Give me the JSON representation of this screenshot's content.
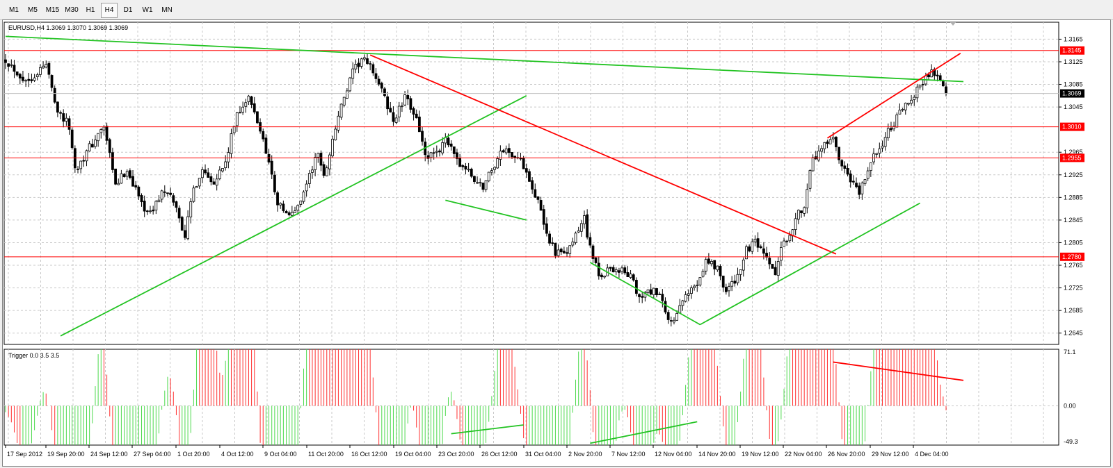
{
  "toolbar": {
    "timeframes": [
      {
        "label": "M1",
        "active": false
      },
      {
        "label": "M5",
        "active": false
      },
      {
        "label": "M15",
        "active": false
      },
      {
        "label": "M30",
        "active": false
      },
      {
        "label": "H1",
        "active": false
      },
      {
        "label": "H4",
        "active": true
      },
      {
        "label": "D1",
        "active": false
      },
      {
        "label": "W1",
        "active": false
      },
      {
        "label": "MN",
        "active": false
      }
    ]
  },
  "price_panel": {
    "info": "EURUSD,H4  1.3069 1.3070 1.3069 1.3069",
    "ticks": [
      "1.3165",
      "1.3125",
      "1.3085",
      "1.3045",
      "1.2965",
      "1.2925",
      "1.2885",
      "1.2845",
      "1.2805",
      "1.2765",
      "1.2725",
      "1.2685",
      "1.2645"
    ],
    "levels": [
      {
        "label": "1.3145",
        "value": 1.3145
      },
      {
        "label": "1.3010",
        "value": 1.301
      },
      {
        "label": "1.2955",
        "value": 1.2955
      },
      {
        "label": "1.2780",
        "value": 1.278
      }
    ],
    "current": {
      "label": "1.3069",
      "value": 1.3069
    }
  },
  "indicator_panel": {
    "info": "Trigger 0.0 3.5 3.5",
    "ticks": [
      "71.1",
      "0.00",
      "-49.3"
    ]
  },
  "time_axis": [
    "17 Sep 2012",
    "19 Sep 20:00",
    "24 Sep 12:00",
    "27 Sep 04:00",
    "1 Oct 20:00",
    "4 Oct 12:00",
    "9 Oct 04:00",
    "11 Oct 20:00",
    "16 Oct 12:00",
    "19 Oct 04:00",
    "23 Oct 20:00",
    "26 Oct 12:00",
    "31 Oct 04:00",
    "2 Nov 20:00",
    "7 Nov 12:00",
    "12 Nov 04:00",
    "14 Nov 20:00",
    "19 Nov 12:00",
    "22 Nov 04:00",
    "26 Nov 20:00",
    "29 Nov 12:00",
    "4 Dec 04:00"
  ],
  "chart_data": {
    "type": "candlestick",
    "symbol": "EURUSD",
    "timeframe": "H4",
    "ylim": [
      1.2625,
      1.3195
    ],
    "indicator_ylim": [
      -49.3,
      71.1
    ],
    "close_path": [
      [
        0,
        1.313
      ],
      [
        7,
        1.309
      ],
      [
        14,
        1.312
      ],
      [
        18,
        1.304
      ],
      [
        22,
        1.301
      ],
      [
        24,
        1.2935
      ],
      [
        30,
        1.298
      ],
      [
        34,
        1.301
      ],
      [
        38,
        1.2905
      ],
      [
        42,
        1.2935
      ],
      [
        47,
        1.2875
      ],
      [
        50,
        1.2855
      ],
      [
        54,
        1.2895
      ],
      [
        58,
        1.288
      ],
      [
        62,
        1.2818
      ],
      [
        65,
        1.29
      ],
      [
        68,
        1.2935
      ],
      [
        72,
        1.2915
      ],
      [
        76,
        1.2945
      ],
      [
        80,
        1.3035
      ],
      [
        84,
        1.306
      ],
      [
        87,
        1.302
      ],
      [
        90,
        1.297
      ],
      [
        94,
        1.2875
      ],
      [
        98,
        1.285
      ],
      [
        101,
        1.287
      ],
      [
        104,
        1.291
      ],
      [
        108,
        1.2965
      ],
      [
        110,
        1.292
      ],
      [
        115,
        1.303
      ],
      [
        120,
        1.3105
      ],
      [
        123,
        1.313
      ],
      [
        127,
        1.311
      ],
      [
        131,
        1.306
      ],
      [
        134,
        1.302
      ],
      [
        138,
        1.306
      ],
      [
        142,
        1.303
      ],
      [
        145,
        1.2955
      ],
      [
        149,
        1.296
      ],
      [
        152,
        1.2995
      ],
      [
        155,
        1.2955
      ],
      [
        159,
        1.2935
      ],
      [
        163,
        1.291
      ],
      [
        165,
        1.2905
      ],
      [
        168,
        1.2935
      ],
      [
        172,
        1.297
      ],
      [
        176,
        1.296
      ],
      [
        180,
        1.2935
      ],
      [
        184,
        1.2875
      ],
      [
        187,
        1.282
      ],
      [
        190,
        1.279
      ],
      [
        193,
        1.278
      ],
      [
        197,
        1.2815
      ],
      [
        200,
        1.285
      ],
      [
        202,
        1.2795
      ],
      [
        205,
        1.2745
      ],
      [
        209,
        1.276
      ],
      [
        213,
        1.2755
      ],
      [
        216,
        1.2745
      ],
      [
        219,
        1.2705
      ],
      [
        223,
        1.272
      ],
      [
        226,
        1.271
      ],
      [
        229,
        1.2665
      ],
      [
        232,
        1.2675
      ],
      [
        235,
        1.271
      ],
      [
        239,
        1.2735
      ],
      [
        242,
        1.2775
      ],
      [
        246,
        1.276
      ],
      [
        249,
        1.272
      ],
      [
        252,
        1.2735
      ],
      [
        256,
        1.279
      ],
      [
        259,
        1.2805
      ],
      [
        262,
        1.278
      ],
      [
        266,
        1.275
      ],
      [
        268,
        1.279
      ],
      [
        272,
        1.2835
      ],
      [
        276,
        1.2875
      ],
      [
        279,
        1.295
      ],
      [
        283,
        1.2975
      ],
      [
        286,
        1.2985
      ],
      [
        289,
        1.2935
      ],
      [
        292,
        1.2915
      ],
      [
        295,
        1.289
      ],
      [
        298,
        1.2935
      ],
      [
        302,
        1.2975
      ],
      [
        305,
        1.3
      ],
      [
        308,
        1.3025
      ],
      [
        311,
        1.3045
      ],
      [
        314,
        1.307
      ],
      [
        317,
        1.309
      ],
      [
        320,
        1.311
      ],
      [
        322,
        1.31
      ],
      [
        325,
        1.3069
      ]
    ],
    "annotations": [
      "green long-term trendline descending from ~1.317 (17 Sep) to ~1.309 (4 Dec)",
      "red downtrend line from 16 Oct high to 19 Nov",
      "green uptrend line from late Sep to 23 Oct",
      "green support line from 12 Nov low to 29 Nov",
      "red line 22 Nov to 4 Dec highs",
      "indicator divergence lines (red top, green bottoms)"
    ]
  }
}
